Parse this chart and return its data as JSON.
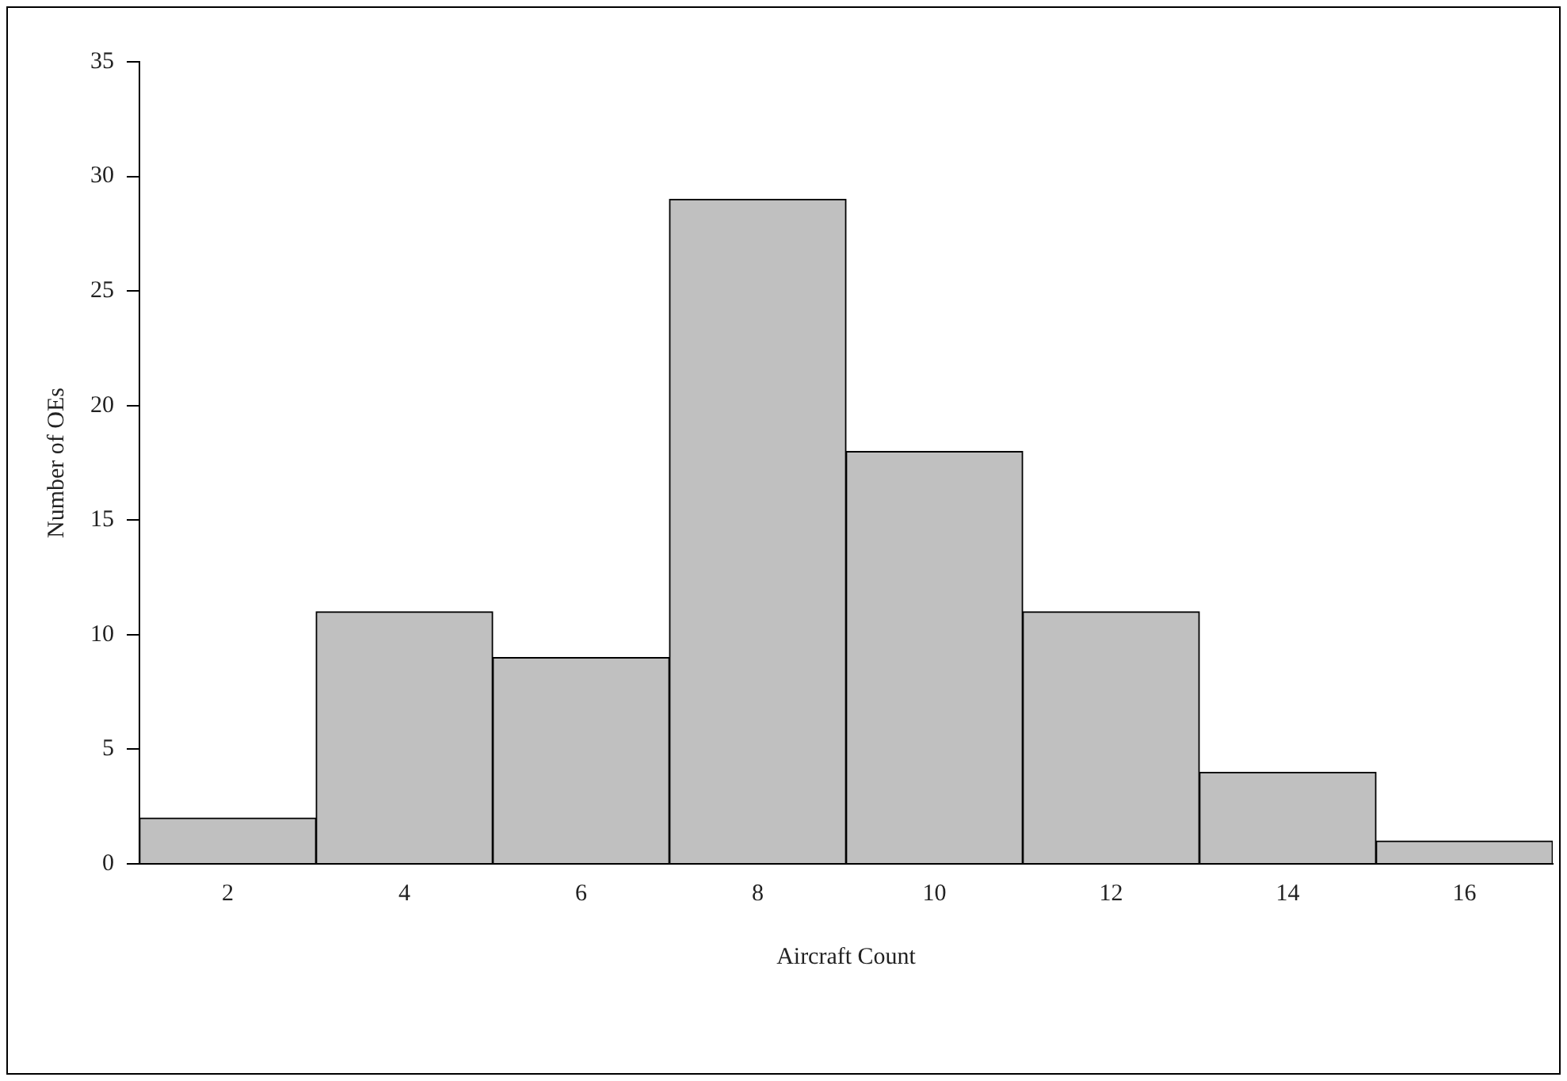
{
  "chart_data": {
    "type": "histogram",
    "xlabel": "Aircraft Count",
    "ylabel": "Number of OEs",
    "bins": [
      1,
      3,
      5,
      7,
      9,
      11,
      13,
      15,
      17
    ],
    "values": [
      2,
      11,
      9,
      29,
      18,
      11,
      4,
      1
    ],
    "color": "#c0c0c0",
    "xlim": [
      1,
      17
    ],
    "xticks": [
      2,
      4,
      6,
      8,
      10,
      12,
      14,
      16
    ],
    "ylim": [
      0,
      35
    ],
    "yticks": [
      0,
      5,
      10,
      15,
      20,
      25,
      30,
      35
    ],
    "grid": false,
    "legend": false
  }
}
